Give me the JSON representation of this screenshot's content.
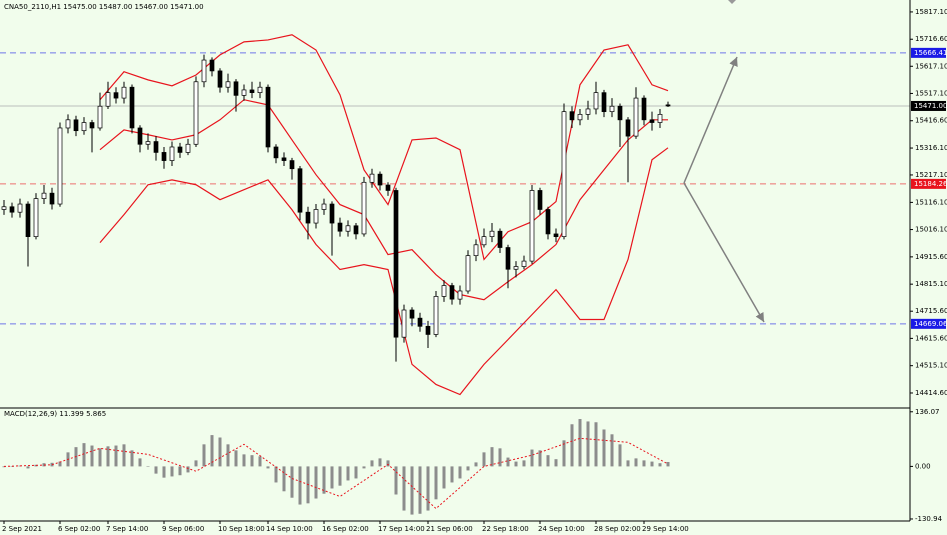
{
  "chart_data": [
    {
      "type": "candlestick",
      "title": "CNA50_2110,H1  15475.00 15487.00 15467.00 15471.00",
      "open": [
        15090,
        15100,
        15080,
        15110,
        14990,
        15130,
        15150,
        15110,
        15390,
        15420,
        15380,
        15410,
        15390,
        15470,
        15520,
        15500,
        15540,
        15390,
        15330,
        15340,
        15300,
        15270,
        15320,
        15300,
        15330,
        15560,
        15640,
        15600,
        15540,
        15560,
        15510,
        15530,
        15520,
        15540,
        15320,
        15280,
        15270,
        15240,
        15080,
        15040,
        15090,
        15110,
        15040,
        15010,
        15030,
        15000,
        15190,
        15220,
        15180,
        15160,
        14620,
        14720,
        14690,
        14660,
        14630,
        14770,
        14810,
        14760,
        14790,
        14920,
        14960,
        14990,
        15010,
        14950,
        14870,
        14880,
        14900,
        15160,
        15090,
        15000,
        14990,
        15450,
        15420,
        15440,
        15460,
        15520,
        15450,
        15470,
        15420,
        15360,
        15500,
        15420,
        15410,
        15475
      ],
      "high": [
        15125,
        15115,
        15130,
        15120,
        15150,
        15180,
        15170,
        15410,
        15440,
        15435,
        15430,
        15420,
        15520,
        15560,
        15540,
        15560,
        15550,
        15400,
        15370,
        15360,
        15320,
        15340,
        15335,
        15350,
        15580,
        15660,
        15650,
        15610,
        15590,
        15570,
        15550,
        15560,
        15560,
        15550,
        15330,
        15300,
        15280,
        15250,
        15100,
        15110,
        15130,
        15120,
        15060,
        15050,
        15040,
        15210,
        15240,
        15230,
        15190,
        15170,
        14740,
        14730,
        14710,
        14680,
        14790,
        14830,
        14820,
        14810,
        14940,
        14980,
        15020,
        15040,
        15020,
        14960,
        14900,
        14920,
        15180,
        15170,
        15100,
        15020,
        15480,
        15470,
        15460,
        15490,
        15560,
        15530,
        15500,
        15480,
        15430,
        15540,
        15510,
        15450,
        15460,
        15487
      ],
      "low": [
        15070,
        15060,
        15060,
        14880,
        14980,
        15110,
        15090,
        15100,
        15370,
        15360,
        15365,
        15300,
        15380,
        15460,
        15480,
        15480,
        15370,
        15300,
        15310,
        15270,
        15240,
        15250,
        15280,
        15290,
        15320,
        15540,
        15580,
        15520,
        15520,
        15450,
        15490,
        15500,
        15500,
        15300,
        15260,
        15250,
        15200,
        15050,
        14980,
        15020,
        15070,
        14920,
        14990,
        14990,
        14980,
        14990,
        15170,
        15160,
        15140,
        14530,
        14600,
        14660,
        14640,
        14580,
        14620,
        14750,
        14740,
        14740,
        14780,
        14900,
        14950,
        14970,
        14930,
        14800,
        14840,
        14870,
        14890,
        15070,
        14980,
        14970,
        14980,
        15390,
        15400,
        15420,
        15440,
        15430,
        15430,
        15320,
        15190,
        15350,
        15400,
        15380,
        15390,
        15467
      ],
      "close": [
        15100,
        15080,
        15110,
        14990,
        15130,
        15150,
        15110,
        15390,
        15420,
        15380,
        15410,
        15390,
        15470,
        15520,
        15500,
        15540,
        15390,
        15330,
        15340,
        15300,
        15270,
        15320,
        15300,
        15330,
        15560,
        15640,
        15600,
        15540,
        15560,
        15510,
        15530,
        15520,
        15540,
        15320,
        15280,
        15270,
        15240,
        15080,
        15040,
        15090,
        15110,
        15040,
        15010,
        15030,
        15000,
        15190,
        15220,
        15180,
        15160,
        14620,
        14720,
        14690,
        14660,
        14630,
        14770,
        14810,
        14760,
        14790,
        14920,
        14960,
        14990,
        15010,
        14950,
        14870,
        14880,
        14900,
        15160,
        15090,
        15000,
        14990,
        15450,
        15420,
        15440,
        15460,
        15520,
        15450,
        15470,
        15420,
        15360,
        15500,
        15420,
        15410,
        15440,
        15471
      ],
      "bands": {
        "color": "#e8141d",
        "index": [
          12,
          15,
          18,
          21,
          24,
          27,
          30,
          33,
          36,
          39,
          42,
          45,
          48,
          51,
          54,
          57,
          60,
          63,
          66,
          69,
          72,
          75,
          78,
          81,
          83
        ],
        "upper": [
          15494,
          15597,
          15567,
          15545,
          15585,
          15659,
          15707,
          15714,
          15733,
          15677,
          15512,
          15236,
          15108,
          15346,
          15353,
          15310,
          14906,
          15008,
          15045,
          15119,
          15549,
          15677,
          15696,
          15549,
          15527
        ],
        "middle": [
          15310,
          15383,
          15365,
          15346,
          15365,
          15420,
          15494,
          15475,
          15346,
          15218,
          15108,
          15071,
          14924,
          14942,
          14850,
          14777,
          14758,
          14824,
          14887,
          14961,
          15126,
          15236,
          15346,
          15420,
          15420
        ],
        "lower": [
          14968,
          15071,
          15181,
          15199,
          15181,
          15126,
          15163,
          15199,
          15089,
          14961,
          14869,
          14887,
          14869,
          14520,
          14446,
          14409,
          14520,
          14611,
          14703,
          14795,
          14685,
          14685,
          14906,
          15273,
          15317
        ]
      },
      "levels": [
        {
          "value": 15666.41,
          "label": "15666.41",
          "color": "#1a1ae6",
          "dashed": true
        },
        {
          "value": 15471.0,
          "label": "15471.00",
          "color": "#000000",
          "dashed": false
        },
        {
          "value": 15184.26,
          "label": "15184.26",
          "color": "#e8141d",
          "dashed": true
        },
        {
          "value": 14669.06,
          "label": "14669.06",
          "color": "#1a1ae6",
          "dashed": true
        }
      ],
      "ylim": [
        14363,
        15861
      ],
      "yticks": [
        {
          "value": 15817.1,
          "label": "15817.10"
        },
        {
          "value": 15716.6,
          "label": "15716.60"
        },
        {
          "value": 15617.1,
          "label": "15617.10"
        },
        {
          "value": 15517.1,
          "label": "15517.10"
        },
        {
          "value": 15416.6,
          "label": "15416.60"
        },
        {
          "value": 15316.1,
          "label": "15316.10"
        },
        {
          "value": 15217.1,
          "label": "15217.10"
        },
        {
          "value": 15116.1,
          "label": "15116.10"
        },
        {
          "value": 15016.1,
          "label": "15016.10"
        },
        {
          "value": 14915.6,
          "label": "14915.60"
        },
        {
          "value": 14815.1,
          "label": "14815.10"
        },
        {
          "value": 14715.6,
          "label": "14715.60"
        },
        {
          "value": 14615.6,
          "label": "14615.60"
        },
        {
          "value": 14515.1,
          "label": "14515.10"
        },
        {
          "value": 14414.6,
          "label": "14414.60"
        }
      ],
      "xticks": [
        {
          "value": 0,
          "label": "2 Sep 2021"
        },
        {
          "value": 7,
          "label": "6 Sep 02:00"
        },
        {
          "value": 13,
          "label": "7 Sep 14:00"
        },
        {
          "value": 20,
          "label": "9 Sep 06:00"
        },
        {
          "value": 27,
          "label": "10 Sep 18:00"
        },
        {
          "value": 33,
          "label": "14 Sep 10:00"
        },
        {
          "value": 40,
          "label": "16 Sep 02:00"
        },
        {
          "value": 47,
          "label": "17 Sep 14:00"
        },
        {
          "value": 53,
          "label": "21 Sep 06:00"
        },
        {
          "value": 60,
          "label": "22 Sep 18:00"
        },
        {
          "value": 67,
          "label": "24 Sep 10:00"
        },
        {
          "value": 74,
          "label": "28 Sep 02:00"
        },
        {
          "value": 80,
          "label": "29 Sep 14:00"
        }
      ]
    },
    {
      "type": "macd",
      "title": "MACD(12,26,9) 11.399 5.865",
      "values": [
        -2,
        0,
        2,
        -5,
        4,
        8,
        9,
        12,
        35,
        48,
        58,
        52,
        45,
        50,
        52,
        55,
        40,
        20,
        0,
        -18,
        -28,
        -25,
        -22,
        -15,
        15,
        55,
        78,
        72,
        55,
        40,
        30,
        28,
        25,
        -5,
        -40,
        -62,
        -78,
        -95,
        -92,
        -80,
        -68,
        -55,
        -48,
        -35,
        -30,
        -5,
        15,
        20,
        15,
        -70,
        -110,
        -120,
        -118,
        -110,
        -82,
        -55,
        -40,
        -30,
        -10,
        10,
        35,
        48,
        45,
        22,
        12,
        15,
        42,
        40,
        28,
        18,
        65,
        105,
        118,
        112,
        110,
        92,
        80,
        55,
        15,
        20,
        15,
        12,
        8,
        11
      ],
      "color": "#8c8c8c",
      "signal": {
        "color": "#e8141d",
        "index": [
          0,
          6,
          12,
          18,
          24,
          30,
          36,
          42,
          48,
          54,
          60,
          66,
          72,
          78,
          83
        ],
        "values": [
          0,
          4,
          45,
          30,
          -12,
          55,
          -30,
          -75,
          5,
          -105,
          0,
          28,
          70,
          60,
          6
        ]
      },
      "ylim": [
        -136,
        143
      ],
      "yticks": [
        {
          "value": 136.07,
          "label": "136.07"
        },
        {
          "value": 0,
          "label": "0.00"
        },
        {
          "value": -130.94,
          "label": "-130.94"
        }
      ]
    }
  ]
}
